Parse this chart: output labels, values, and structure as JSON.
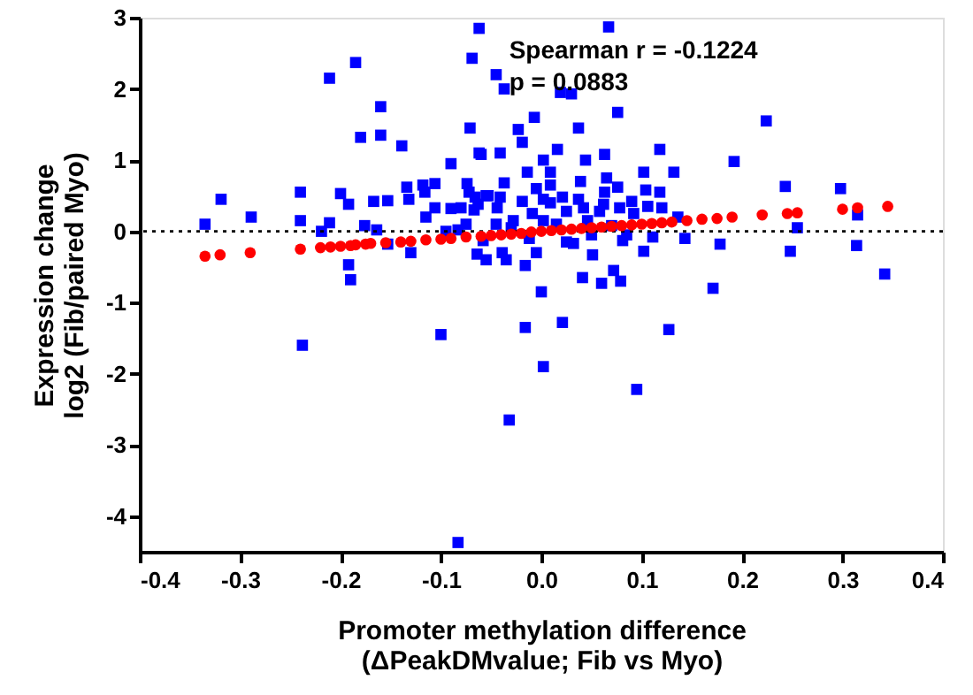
{
  "chart_data": {
    "type": "scatter",
    "xlabel": "Promoter methylation difference\n(ΔPeakDMvalue; Fib vs Myo)",
    "ylabel": "Expression change\nlog2 (Fib/paired Myo)",
    "annotations": [
      "Spearman r = -0.1224",
      "p = 0.0883"
    ],
    "xlim": [
      -0.4,
      0.4
    ],
    "xticks": [
      -0.4,
      -0.3,
      -0.2,
      -0.1,
      {
        "value": 0,
        "label": "0.0"
      },
      0.1,
      0.2,
      0.3,
      0.4
    ],
    "ylim": [
      -4.5,
      3
    ],
    "yticks": [
      -4,
      -3,
      -2,
      -1,
      0,
      1,
      2,
      3
    ],
    "grid": false,
    "ref_lines": [
      {
        "axis": "y",
        "value": 0,
        "color": "#000000",
        "line_style": "dotted"
      }
    ],
    "series": [
      {
        "color": "#0000ff",
        "marker": "square",
        "x": [
          -0.335,
          -0.319,
          -0.289,
          -0.24,
          -0.24,
          -0.238,
          -0.211,
          -0.185,
          -0.18,
          -0.16,
          -0.16,
          -0.139,
          -0.2,
          -0.192,
          -0.211,
          -0.219,
          -0.176,
          -0.192,
          -0.19,
          -0.167,
          -0.153,
          -0.164,
          -0.153,
          -0.134,
          -0.132,
          -0.13,
          -0.118,
          -0.106,
          -0.116,
          -0.106,
          -0.115,
          -0.1,
          -0.09,
          -0.09,
          -0.095,
          -0.071,
          -0.069,
          -0.062,
          -0.062,
          -0.074,
          -0.072,
          -0.066,
          -0.067,
          -0.08,
          -0.064,
          -0.055,
          -0.055,
          -0.075,
          -0.083,
          -0.083,
          0.002,
          0.095,
          -0.032,
          0.067,
          -0.045,
          -0.037,
          0.019,
          0.03,
          0.076,
          -0.007,
          0.037,
          -0.023,
          -0.019,
          0.016,
          -0.06,
          -0.041,
          0.002,
          0.044,
          0.063,
          0.118,
          0.192,
          0.224,
          -0.014,
          0.009,
          0.065,
          0.102,
          0.132,
          -0.037,
          -0.005,
          0.009,
          0.039,
          0.063,
          0.076,
          0.104,
          0.118,
          0.243,
          0.298,
          -0.053,
          -0.041,
          -0.019,
          0.002,
          0.021,
          0.037,
          0.062,
          0.09,
          0.106,
          -0.044,
          -0.009,
          0.009,
          0.025,
          0.042,
          0.058,
          0.078,
          0.092,
          0.12,
          0.136,
          -0.063,
          -0.028,
          0.002,
          0.046,
          0.255,
          0.315,
          -0.058,
          -0.039,
          -0.035,
          -0.016,
          -0.005,
          0.032,
          0.051,
          0.081,
          0.102,
          0.111,
          0.143,
          0.178,
          0.248,
          0.314,
          0.342,
          0.041,
          0.06,
          0.072,
          0.079,
          0.0,
          0.171,
          -0.016,
          0.021,
          0.127,
          -0.03,
          -0.012,
          0.015,
          0.05,
          0.07,
          -0.045,
          0.085,
          0.025
        ],
        "values": [
          0.1,
          0.45,
          0.2,
          0.55,
          0.15,
          -1.6,
          2.15,
          2.37,
          1.32,
          1.75,
          1.35,
          1.2,
          0.53,
          0.38,
          0.12,
          0.0,
          0.08,
          -0.47,
          -0.68,
          0.42,
          0.43,
          0.02,
          -0.18,
          0.62,
          0.45,
          -0.3,
          0.65,
          0.67,
          0.55,
          0.33,
          0.2,
          -1.45,
          0.95,
          0.32,
          0.0,
          1.45,
          2.43,
          2.85,
          1.1,
          0.67,
          0.55,
          0.48,
          0.3,
          0.33,
          -0.32,
          -0.4,
          0.5,
          0.1,
          0.02,
          -4.37,
          -1.9,
          -2.22,
          -2.65,
          2.87,
          2.2,
          2.0,
          1.95,
          1.93,
          1.67,
          1.6,
          1.45,
          1.43,
          1.25,
          1.15,
          1.08,
          1.1,
          1.0,
          1.0,
          1.08,
          1.15,
          0.98,
          1.55,
          0.83,
          0.83,
          0.75,
          0.83,
          0.83,
          0.68,
          0.6,
          0.65,
          0.7,
          0.55,
          0.62,
          0.58,
          0.55,
          0.63,
          0.6,
          0.5,
          0.48,
          0.42,
          0.45,
          0.48,
          0.45,
          0.38,
          0.42,
          0.35,
          0.33,
          0.25,
          0.4,
          0.28,
          0.33,
          0.28,
          0.33,
          0.25,
          0.33,
          0.2,
          0.38,
          0.15,
          0.15,
          0.15,
          0.05,
          0.23,
          -0.13,
          -0.3,
          -0.4,
          -0.48,
          -0.3,
          -0.17,
          -0.33,
          -0.13,
          -0.28,
          -0.08,
          -0.1,
          -0.18,
          -0.28,
          -0.2,
          -0.6,
          -0.65,
          -0.73,
          -0.55,
          -0.7,
          -0.85,
          -0.8,
          -1.35,
          -1.28,
          -1.38,
          0.05,
          -0.1,
          0.1,
          -0.05,
          0.08,
          0.1,
          -0.05,
          -0.15
        ]
      },
      {
        "color": "#ff0000",
        "marker": "circle",
        "x": [
          -0.335,
          -0.32,
          -0.29,
          -0.24,
          -0.22,
          -0.21,
          -0.2,
          -0.19,
          -0.185,
          -0.175,
          -0.17,
          -0.155,
          -0.14,
          -0.13,
          -0.115,
          -0.1,
          -0.09,
          -0.075,
          -0.06,
          -0.05,
          -0.04,
          -0.03,
          -0.02,
          -0.01,
          0.0,
          0.01,
          0.02,
          0.03,
          0.04,
          0.05,
          0.06,
          0.07,
          0.08,
          0.09,
          0.1,
          0.11,
          0.12,
          0.13,
          0.145,
          0.16,
          0.175,
          0.19,
          0.22,
          0.245,
          0.255,
          0.3,
          0.315,
          0.345
        ],
        "values": [
          -0.35,
          -0.33,
          -0.3,
          -0.25,
          -0.23,
          -0.22,
          -0.21,
          -0.2,
          -0.19,
          -0.18,
          -0.17,
          -0.16,
          -0.15,
          -0.14,
          -0.12,
          -0.11,
          -0.1,
          -0.08,
          -0.07,
          -0.06,
          -0.05,
          -0.04,
          -0.03,
          -0.01,
          0.0,
          0.01,
          0.02,
          0.03,
          0.04,
          0.05,
          0.06,
          0.07,
          0.08,
          0.09,
          0.1,
          0.11,
          0.12,
          0.13,
          0.15,
          0.17,
          0.18,
          0.2,
          0.23,
          0.25,
          0.26,
          0.31,
          0.33,
          0.35
        ]
      }
    ]
  }
}
